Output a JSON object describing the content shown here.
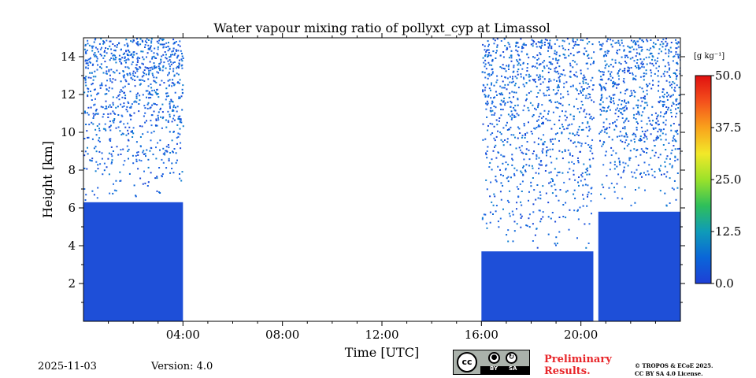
{
  "chart_data": {
    "type": "heatmap",
    "title": "Water vapour mixing ratio of pollyxt_cyp at Limassol",
    "xlabel": "Time [UTC]",
    "ylabel": "Height [km]",
    "xlim": [
      0,
      24
    ],
    "ylim": [
      0,
      15
    ],
    "x_ticks": [
      {
        "value": 4,
        "label": "04:00"
      },
      {
        "value": 8,
        "label": "08:00"
      },
      {
        "value": 12,
        "label": "12:00"
      },
      {
        "value": 16,
        "label": "16:00"
      },
      {
        "value": 20,
        "label": "20:00"
      }
    ],
    "y_ticks": [
      {
        "value": 2,
        "label": "2"
      },
      {
        "value": 4,
        "label": "4"
      },
      {
        "value": 6,
        "label": "6"
      },
      {
        "value": 8,
        "label": "8"
      },
      {
        "value": 10,
        "label": "10"
      },
      {
        "value": 12,
        "label": "12"
      },
      {
        "value": 14,
        "label": "14"
      }
    ],
    "colorbar": {
      "label": "[g kg⁻¹]",
      "range": [
        0,
        50
      ],
      "ticks": [
        {
          "value": 0,
          "label": "0.0"
        },
        {
          "value": 12.5,
          "label": "12.5"
        },
        {
          "value": 25,
          "label": "25.0"
        },
        {
          "value": 37.5,
          "label": "37.5"
        },
        {
          "value": 50,
          "label": "50.0"
        }
      ],
      "colormap": [
        "#1e3fd6",
        "#0a66d8",
        "#0f9bb8",
        "#2fbf5a",
        "#9be22a",
        "#f2e829",
        "#f9a21c",
        "#f4511c",
        "#e01010"
      ]
    },
    "data_segments": [
      {
        "t_start": 0.0,
        "t_end": 4.0,
        "dense_top_km": 6.3,
        "noisy_top_km": 15.0
      },
      {
        "t_start": 16.0,
        "t_end": 20.5,
        "dense_top_km": 3.7,
        "noisy_top_km": 15.0
      },
      {
        "t_start": 20.7,
        "t_end": 24.0,
        "dense_top_km": 5.8,
        "noisy_top_km": 15.0
      }
    ],
    "typical_value_g_kg": 3.0
  },
  "footer": {
    "date": "2025-11-03",
    "version": "Version: 4.0",
    "cc_text": "cc",
    "cc_by": "BY",
    "cc_sa": "SA",
    "preliminary_line1": "Preliminary",
    "preliminary_line2": "Results.",
    "license_line1": "© TROPOS & ECoE 2025.",
    "license_line2": "CC BY SA 4.0 License."
  },
  "colors": {
    "data_blue": "#1e4fd8",
    "noise_blue": "#1a5fe0",
    "preliminary_red": "#e8262a"
  }
}
